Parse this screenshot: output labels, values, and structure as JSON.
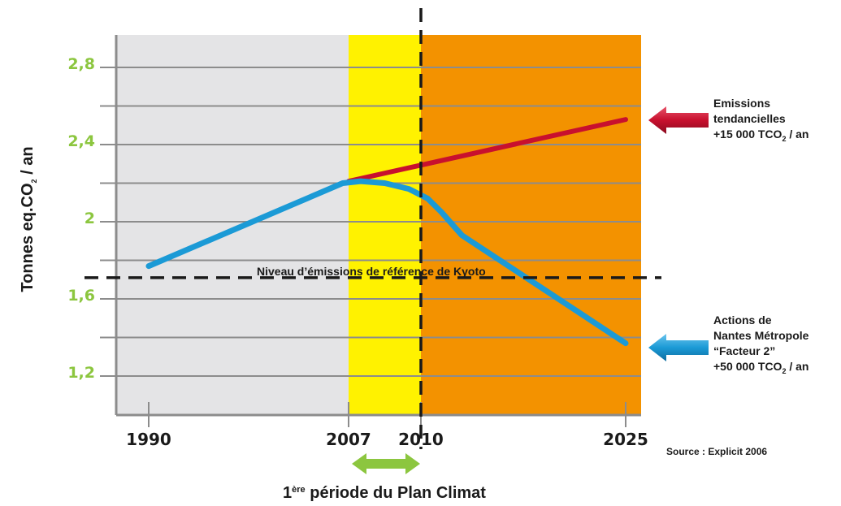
{
  "colors": {
    "ytick": "#8cc63f",
    "past_band": "#e4e4e6",
    "period_band": "#fff200",
    "future_band": "#f39200",
    "grid": "#8c8c8c",
    "trend": "#c8102e",
    "actions": "#1b9ad6",
    "green_arrow": "#8cc63f",
    "dashed": "#1a1a1a"
  },
  "chart_data": {
    "type": "line",
    "ylabel": {
      "main": "Tonnes eq.CO",
      "sub": "2",
      "tail": " / an"
    },
    "ylim": [
      1.0,
      3.0
    ],
    "yticks": [
      {
        "value": 1.2,
        "label": "1,2"
      },
      {
        "value": 1.6,
        "label": "1,6"
      },
      {
        "value": 2.0,
        "label": "2"
      },
      {
        "value": 2.4,
        "label": "2,4"
      },
      {
        "value": 2.8,
        "label": "2,8"
      }
    ],
    "grid_values": [
      1.2,
      1.4,
      1.6,
      1.8,
      2.0,
      2.2,
      2.4,
      2.6,
      2.8
    ],
    "xticks": [
      {
        "value": 1990,
        "label": "1990"
      },
      {
        "value": 2007,
        "label": "2007"
      },
      {
        "value": 2010,
        "label": "2010"
      },
      {
        "value": 2025,
        "label": "2025"
      }
    ],
    "periods": [
      {
        "name": "past",
        "start": 1990,
        "end": 2007
      },
      {
        "name": "period",
        "start": 2007,
        "end": 2010
      },
      {
        "name": "future",
        "start": 2010,
        "end": 2025
      }
    ],
    "series": [
      {
        "name": "Emissions tendancielles",
        "points": [
          [
            2007,
            2.21
          ],
          [
            2025,
            2.53
          ]
        ]
      },
      {
        "name": "Actions de Nantes Métropole",
        "points": [
          [
            1990,
            1.77
          ],
          [
            2006.5,
            2.2
          ],
          [
            2007.5,
            2.21
          ],
          [
            2008.5,
            2.2
          ],
          [
            2009.5,
            2.17
          ],
          [
            2010.5,
            2.12
          ],
          [
            2011.5,
            2.05
          ],
          [
            2013,
            1.93
          ],
          [
            2025,
            1.37
          ]
        ]
      }
    ],
    "reference": {
      "value": 1.71,
      "label": "Niveau d’émissions de référence de Kyoto"
    },
    "milestone": {
      "year": 2010
    },
    "annotations": {
      "trend": {
        "line1": "Emissions",
        "line2": "tendancielles",
        "line3_main": "+15 000 TCO",
        "line3_sub": "2",
        "line3_tail": " / an"
      },
      "actions": {
        "line1": "Actions de",
        "line2": "Nantes Métropole",
        "line3": "“Facteur 2”",
        "line4_main": "+50 000 TCO",
        "line4_sub": "2",
        "line4_tail": " / an"
      }
    },
    "source": "Source : Explicit 2006",
    "period_caption": {
      "sup": "ère",
      "pre": "1",
      "text": " période du Plan Climat"
    }
  }
}
